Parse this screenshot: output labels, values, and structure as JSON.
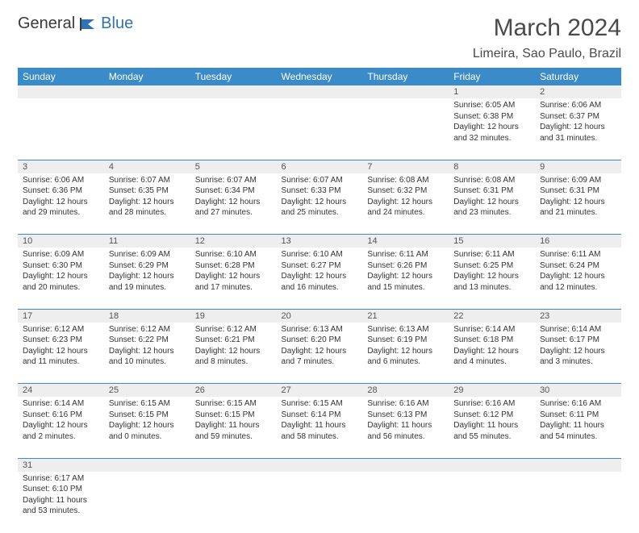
{
  "logo": {
    "part1": "General",
    "part2": "Blue"
  },
  "header": {
    "title": "March 2024",
    "location": "Limeira, Sao Paulo, Brazil"
  },
  "colors": {
    "header_bg": "#3b8bc9",
    "header_fg": "#ffffff",
    "daynum_bg": "#eeeeee",
    "border": "#3b8bc9",
    "logo_gray": "#5a5a5a",
    "logo_blue": "#2e74b5"
  },
  "weekdays": [
    "Sunday",
    "Monday",
    "Tuesday",
    "Wednesday",
    "Thursday",
    "Friday",
    "Saturday"
  ],
  "weeks": [
    [
      null,
      null,
      null,
      null,
      null,
      {
        "n": "1",
        "sr": "Sunrise: 6:05 AM",
        "ss": "Sunset: 6:38 PM",
        "dl1": "Daylight: 12 hours",
        "dl2": "and 32 minutes."
      },
      {
        "n": "2",
        "sr": "Sunrise: 6:06 AM",
        "ss": "Sunset: 6:37 PM",
        "dl1": "Daylight: 12 hours",
        "dl2": "and 31 minutes."
      }
    ],
    [
      {
        "n": "3",
        "sr": "Sunrise: 6:06 AM",
        "ss": "Sunset: 6:36 PM",
        "dl1": "Daylight: 12 hours",
        "dl2": "and 29 minutes."
      },
      {
        "n": "4",
        "sr": "Sunrise: 6:07 AM",
        "ss": "Sunset: 6:35 PM",
        "dl1": "Daylight: 12 hours",
        "dl2": "and 28 minutes."
      },
      {
        "n": "5",
        "sr": "Sunrise: 6:07 AM",
        "ss": "Sunset: 6:34 PM",
        "dl1": "Daylight: 12 hours",
        "dl2": "and 27 minutes."
      },
      {
        "n": "6",
        "sr": "Sunrise: 6:07 AM",
        "ss": "Sunset: 6:33 PM",
        "dl1": "Daylight: 12 hours",
        "dl2": "and 25 minutes."
      },
      {
        "n": "7",
        "sr": "Sunrise: 6:08 AM",
        "ss": "Sunset: 6:32 PM",
        "dl1": "Daylight: 12 hours",
        "dl2": "and 24 minutes."
      },
      {
        "n": "8",
        "sr": "Sunrise: 6:08 AM",
        "ss": "Sunset: 6:31 PM",
        "dl1": "Daylight: 12 hours",
        "dl2": "and 23 minutes."
      },
      {
        "n": "9",
        "sr": "Sunrise: 6:09 AM",
        "ss": "Sunset: 6:31 PM",
        "dl1": "Daylight: 12 hours",
        "dl2": "and 21 minutes."
      }
    ],
    [
      {
        "n": "10",
        "sr": "Sunrise: 6:09 AM",
        "ss": "Sunset: 6:30 PM",
        "dl1": "Daylight: 12 hours",
        "dl2": "and 20 minutes."
      },
      {
        "n": "11",
        "sr": "Sunrise: 6:09 AM",
        "ss": "Sunset: 6:29 PM",
        "dl1": "Daylight: 12 hours",
        "dl2": "and 19 minutes."
      },
      {
        "n": "12",
        "sr": "Sunrise: 6:10 AM",
        "ss": "Sunset: 6:28 PM",
        "dl1": "Daylight: 12 hours",
        "dl2": "and 17 minutes."
      },
      {
        "n": "13",
        "sr": "Sunrise: 6:10 AM",
        "ss": "Sunset: 6:27 PM",
        "dl1": "Daylight: 12 hours",
        "dl2": "and 16 minutes."
      },
      {
        "n": "14",
        "sr": "Sunrise: 6:11 AM",
        "ss": "Sunset: 6:26 PM",
        "dl1": "Daylight: 12 hours",
        "dl2": "and 15 minutes."
      },
      {
        "n": "15",
        "sr": "Sunrise: 6:11 AM",
        "ss": "Sunset: 6:25 PM",
        "dl1": "Daylight: 12 hours",
        "dl2": "and 13 minutes."
      },
      {
        "n": "16",
        "sr": "Sunrise: 6:11 AM",
        "ss": "Sunset: 6:24 PM",
        "dl1": "Daylight: 12 hours",
        "dl2": "and 12 minutes."
      }
    ],
    [
      {
        "n": "17",
        "sr": "Sunrise: 6:12 AM",
        "ss": "Sunset: 6:23 PM",
        "dl1": "Daylight: 12 hours",
        "dl2": "and 11 minutes."
      },
      {
        "n": "18",
        "sr": "Sunrise: 6:12 AM",
        "ss": "Sunset: 6:22 PM",
        "dl1": "Daylight: 12 hours",
        "dl2": "and 10 minutes."
      },
      {
        "n": "19",
        "sr": "Sunrise: 6:12 AM",
        "ss": "Sunset: 6:21 PM",
        "dl1": "Daylight: 12 hours",
        "dl2": "and 8 minutes."
      },
      {
        "n": "20",
        "sr": "Sunrise: 6:13 AM",
        "ss": "Sunset: 6:20 PM",
        "dl1": "Daylight: 12 hours",
        "dl2": "and 7 minutes."
      },
      {
        "n": "21",
        "sr": "Sunrise: 6:13 AM",
        "ss": "Sunset: 6:19 PM",
        "dl1": "Daylight: 12 hours",
        "dl2": "and 6 minutes."
      },
      {
        "n": "22",
        "sr": "Sunrise: 6:14 AM",
        "ss": "Sunset: 6:18 PM",
        "dl1": "Daylight: 12 hours",
        "dl2": "and 4 minutes."
      },
      {
        "n": "23",
        "sr": "Sunrise: 6:14 AM",
        "ss": "Sunset: 6:17 PM",
        "dl1": "Daylight: 12 hours",
        "dl2": "and 3 minutes."
      }
    ],
    [
      {
        "n": "24",
        "sr": "Sunrise: 6:14 AM",
        "ss": "Sunset: 6:16 PM",
        "dl1": "Daylight: 12 hours",
        "dl2": "and 2 minutes."
      },
      {
        "n": "25",
        "sr": "Sunrise: 6:15 AM",
        "ss": "Sunset: 6:15 PM",
        "dl1": "Daylight: 12 hours",
        "dl2": "and 0 minutes."
      },
      {
        "n": "26",
        "sr": "Sunrise: 6:15 AM",
        "ss": "Sunset: 6:15 PM",
        "dl1": "Daylight: 11 hours",
        "dl2": "and 59 minutes."
      },
      {
        "n": "27",
        "sr": "Sunrise: 6:15 AM",
        "ss": "Sunset: 6:14 PM",
        "dl1": "Daylight: 11 hours",
        "dl2": "and 58 minutes."
      },
      {
        "n": "28",
        "sr": "Sunrise: 6:16 AM",
        "ss": "Sunset: 6:13 PM",
        "dl1": "Daylight: 11 hours",
        "dl2": "and 56 minutes."
      },
      {
        "n": "29",
        "sr": "Sunrise: 6:16 AM",
        "ss": "Sunset: 6:12 PM",
        "dl1": "Daylight: 11 hours",
        "dl2": "and 55 minutes."
      },
      {
        "n": "30",
        "sr": "Sunrise: 6:16 AM",
        "ss": "Sunset: 6:11 PM",
        "dl1": "Daylight: 11 hours",
        "dl2": "and 54 minutes."
      }
    ],
    [
      {
        "n": "31",
        "sr": "Sunrise: 6:17 AM",
        "ss": "Sunset: 6:10 PM",
        "dl1": "Daylight: 11 hours",
        "dl2": "and 53 minutes."
      },
      null,
      null,
      null,
      null,
      null,
      null
    ]
  ]
}
